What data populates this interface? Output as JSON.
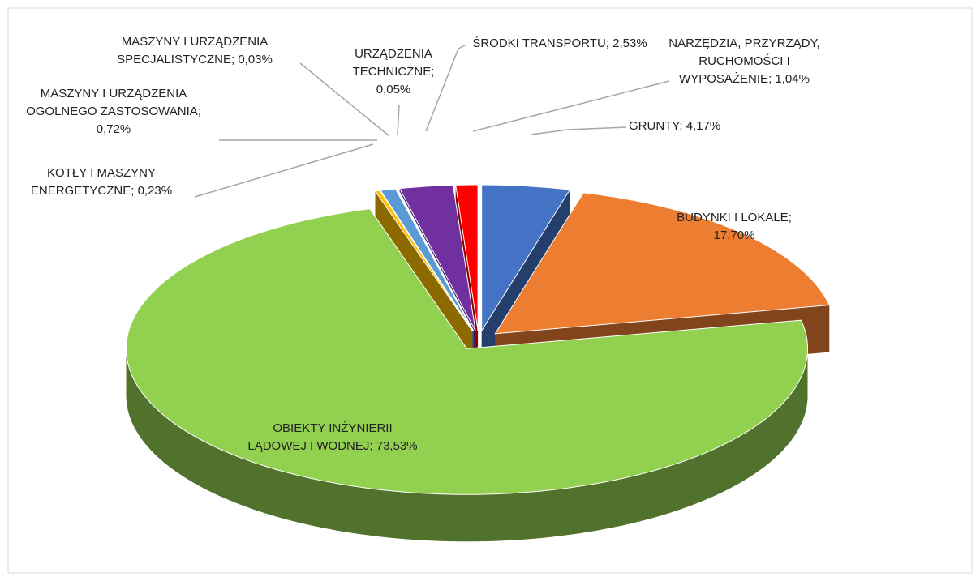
{
  "chart_data": {
    "type": "pie3d",
    "categories": [
      "GRUNTY;",
      "BUDYNKI I LOKALE;",
      "OBIEKTY INŻYNIERII LĄDOWEJ I WODNEJ;",
      "KOTŁY I MASZYNY ENERGETYCZNE;",
      "MASZYNY I URZĄDZENIA OGÓLNEGO ZASTOSOWANIA;",
      "MASZYNY I URZĄDZENIA SPECJALISTYCZNE;",
      "URZĄDZENIA TECHNICZNE;",
      "ŚRODKI TRANSPORTU;",
      "NARZĘDZIA, PRZYRZĄDY, RUCHOMOŚCI I WYPOSAŻENIE;"
    ],
    "values": [
      4.17,
      17.7,
      73.53,
      0.23,
      0.72,
      0.03,
      0.05,
      2.53,
      1.04
    ],
    "value_labels": [
      "4,17%",
      "17,70%",
      "73,53%",
      "0,23%",
      "0,72%",
      "0,03%",
      "0,05%",
      "2,53%",
      "1,04%"
    ],
    "colors": [
      "#4472c4",
      "#ed7d31",
      "#92d050",
      "#ffc000",
      "#5b9bd5",
      "#a5a5a5",
      "#264478",
      "#7030a0",
      "#ff0000"
    ]
  }
}
